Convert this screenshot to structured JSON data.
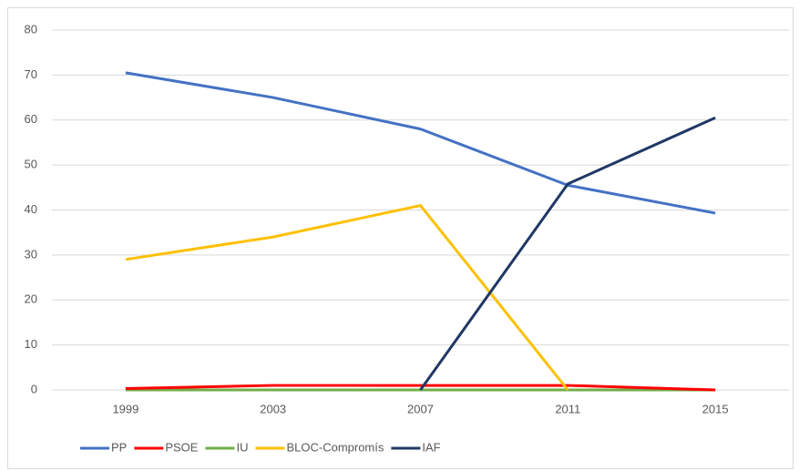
{
  "chart_data": {
    "type": "line",
    "categories": [
      "1999",
      "2003",
      "2007",
      "2011",
      "2015"
    ],
    "series": [
      {
        "name": "PP",
        "color": "#4472c4",
        "values": [
          70.5,
          65,
          58,
          45.5,
          39.3
        ]
      },
      {
        "name": "PSOE",
        "color": "#ff0000",
        "values": [
          0.3,
          1,
          1,
          1,
          0
        ]
      },
      {
        "name": "IU",
        "color": "#70ad47",
        "values": [
          0,
          0,
          0,
          0,
          0
        ]
      },
      {
        "name": "BLOC-Compromís",
        "color": "#ffc000",
        "values": [
          29,
          34,
          41,
          0,
          null
        ]
      },
      {
        "name": "IAF",
        "color": "#203864",
        "values": [
          null,
          null,
          0,
          45.8,
          60.5
        ]
      }
    ],
    "ylim": [
      0,
      80
    ],
    "yticks": [
      0,
      10,
      20,
      30,
      40,
      50,
      60,
      70,
      80
    ],
    "grid": true,
    "legend": "bottom"
  }
}
